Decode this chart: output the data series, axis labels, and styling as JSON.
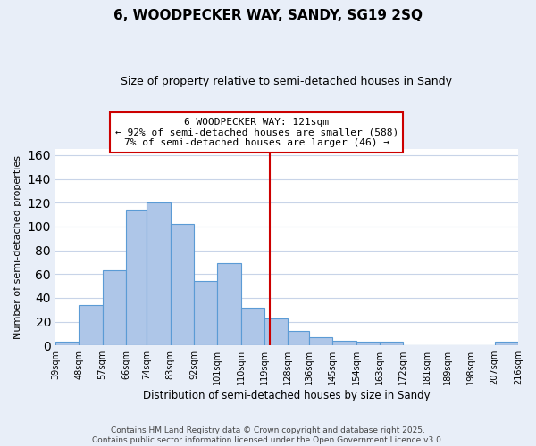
{
  "title": "6, WOODPECKER WAY, SANDY, SG19 2SQ",
  "subtitle": "Size of property relative to semi-detached houses in Sandy",
  "xlabel": "Distribution of semi-detached houses by size in Sandy",
  "ylabel": "Number of semi-detached properties",
  "bin_labels": [
    "39sqm",
    "48sqm",
    "57sqm",
    "66sqm",
    "74sqm",
    "83sqm",
    "92sqm",
    "101sqm",
    "110sqm",
    "119sqm",
    "128sqm",
    "136sqm",
    "145sqm",
    "154sqm",
    "163sqm",
    "172sqm",
    "181sqm",
    "189sqm",
    "198sqm",
    "207sqm",
    "216sqm"
  ],
  "bin_edges": [
    39,
    48,
    57,
    66,
    74,
    83,
    92,
    101,
    110,
    119,
    128,
    136,
    145,
    154,
    163,
    172,
    181,
    189,
    198,
    207,
    216
  ],
  "bar_heights": [
    3,
    34,
    63,
    114,
    120,
    102,
    54,
    69,
    32,
    23,
    12,
    7,
    4,
    3,
    3,
    0,
    0,
    0,
    0,
    3
  ],
  "bar_color": "#aec6e8",
  "bar_edgecolor": "#5b9bd5",
  "property_size": 121,
  "vline_color": "#cc0000",
  "annotation_line1": "6 WOODPECKER WAY: 121sqm",
  "annotation_line2": "← 92% of semi-detached houses are smaller (588)",
  "annotation_line3": "7% of semi-detached houses are larger (46) →",
  "annotation_box_edgecolor": "#cc0000",
  "annotation_box_facecolor": "#ffffff",
  "ylim": [
    0,
    165
  ],
  "yticks": [
    0,
    20,
    40,
    60,
    80,
    100,
    120,
    140,
    160
  ],
  "footer_text": "Contains HM Land Registry data © Crown copyright and database right 2025.\nContains public sector information licensed under the Open Government Licence v3.0.",
  "bg_color": "#e8eef8",
  "plot_bg_color": "#ffffff",
  "grid_color": "#c8d4e8"
}
